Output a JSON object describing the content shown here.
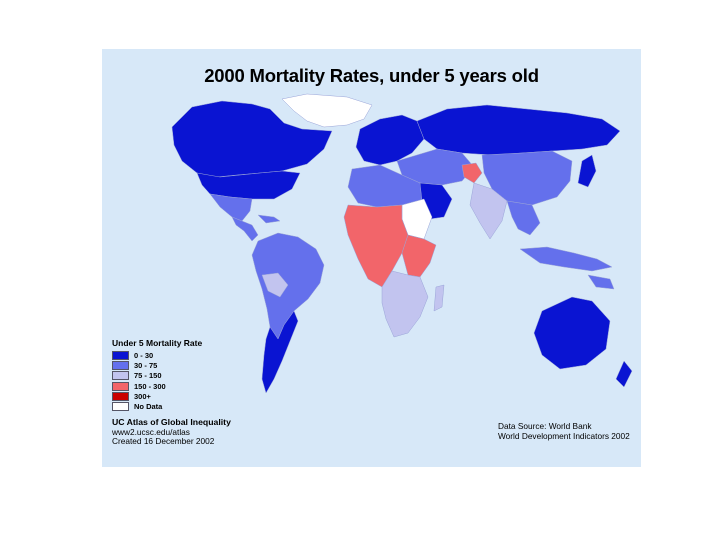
{
  "map": {
    "title": "2000 Mortality Rates, under 5 years old",
    "legend": {
      "title": "Under 5 Mortality Rate",
      "items": [
        {
          "label": "0 - 30",
          "color": "#0a14d2"
        },
        {
          "label": "30 - 75",
          "color": "#6470ec"
        },
        {
          "label": "75 - 150",
          "color": "#c2c4ef"
        },
        {
          "label": "150 - 300",
          "color": "#f2656a"
        },
        {
          "label": "300+",
          "color": "#c80000"
        },
        {
          "label": "No Data",
          "color": "#ffffff"
        }
      ]
    },
    "credit": {
      "line1": "UC Atlas of Global Inequality",
      "line2": "www2.ucsc.edu/atlas",
      "line3": "Created 16 December 2002"
    },
    "source": {
      "line1": "Data Source: World Bank",
      "line2": "World Development Indicators 2002"
    },
    "colors": {
      "ocean": "#d7e8f8",
      "border": "#9aa4d8"
    }
  }
}
